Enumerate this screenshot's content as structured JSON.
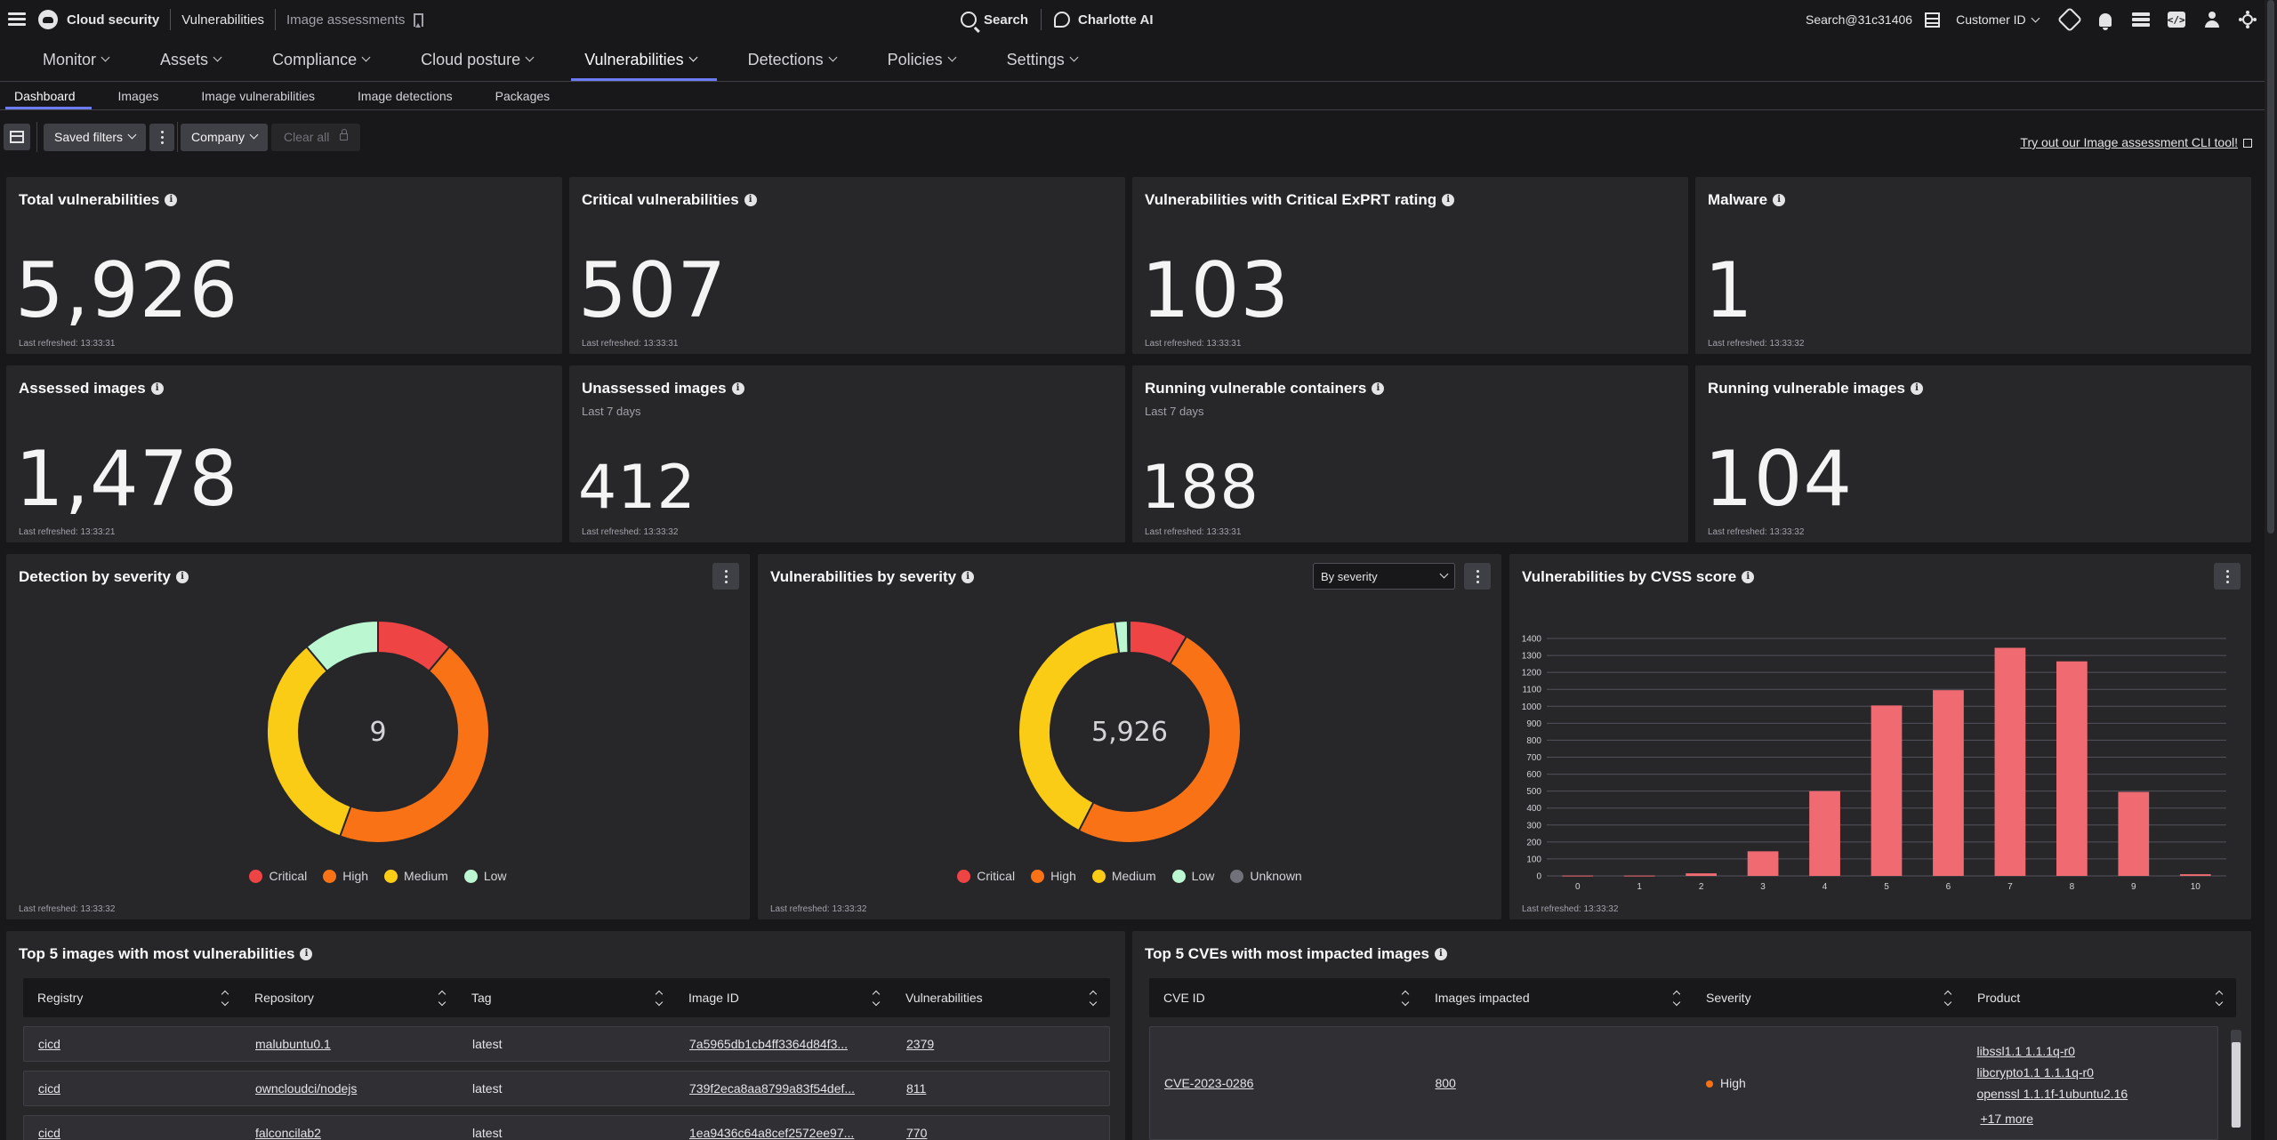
{
  "topbar": {
    "product": "Cloud security",
    "section": "Vulnerabilities",
    "page": "Image assessments",
    "search_label": "Search",
    "assistant_label": "Charlotte AI",
    "account": "Search@31c31406",
    "customer_label": "Customer ID"
  },
  "mainnav": [
    {
      "label": "Monitor"
    },
    {
      "label": "Assets"
    },
    {
      "label": "Compliance"
    },
    {
      "label": "Cloud posture"
    },
    {
      "label": "Vulnerabilities"
    },
    {
      "label": "Detections"
    },
    {
      "label": "Policies"
    },
    {
      "label": "Settings"
    }
  ],
  "subnav": [
    {
      "label": "Dashboard"
    },
    {
      "label": "Images"
    },
    {
      "label": "Image vulnerabilities"
    },
    {
      "label": "Image detections"
    },
    {
      "label": "Packages"
    }
  ],
  "filters": {
    "saved_filters": "Saved filters",
    "company": "Company",
    "clear_all": "Clear all",
    "cli_link": "Try out our Image assessment CLI tool!"
  },
  "stats": [
    {
      "title": "Total vulnerabilities",
      "sub": "",
      "value": "5,926",
      "refreshed": "Last refreshed: 13:33:31"
    },
    {
      "title": "Critical vulnerabilities",
      "sub": "",
      "value": "507",
      "refreshed": "Last refreshed: 13:33:31"
    },
    {
      "title": "Vulnerabilities with Critical ExPRT rating",
      "sub": "",
      "value": "103",
      "refreshed": "Last refreshed: 13:33:31"
    },
    {
      "title": "Malware",
      "sub": "",
      "value": "1",
      "refreshed": "Last refreshed: 13:33:32"
    },
    {
      "title": "Assessed images",
      "sub": "",
      "value": "1,478",
      "refreshed": "Last refreshed: 13:33:21"
    },
    {
      "title": "Unassessed images",
      "sub": "Last 7 days",
      "value": "412",
      "refreshed": "Last refreshed: 13:33:32"
    },
    {
      "title": "Running vulnerable containers",
      "sub": "Last 7 days",
      "value": "188",
      "refreshed": "Last refreshed: 13:33:31"
    },
    {
      "title": "Running vulnerable images",
      "sub": "",
      "value": "104",
      "refreshed": "Last refreshed: 13:33:32"
    }
  ],
  "detection_by_severity": {
    "title": "Detection by severity",
    "center": "9",
    "refreshed": "Last refreshed: 13:33:32",
    "legend": [
      "Critical",
      "High",
      "Medium",
      "Low"
    ]
  },
  "vulns_by_severity": {
    "title": "Vulnerabilities by severity",
    "select": "By severity",
    "center": "5,926",
    "refreshed": "Last refreshed: 13:33:32",
    "legend": [
      "Critical",
      "High",
      "Medium",
      "Low",
      "Unknown"
    ]
  },
  "cvss": {
    "title": "Vulnerabilities by CVSS score",
    "refreshed": "Last refreshed: 13:33:32"
  },
  "colors": {
    "critical": "#ef4444",
    "high": "#f97316",
    "medium": "#facc15",
    "low": "#bbf7d0",
    "unknown": "#71717a",
    "bar": "#f06a72"
  },
  "chart_data": [
    {
      "type": "pie",
      "title": "Detection by severity",
      "categories": [
        "Critical",
        "High",
        "Medium",
        "Low"
      ],
      "values": [
        1,
        4,
        3,
        1
      ],
      "total": 9
    },
    {
      "type": "pie",
      "title": "Vulnerabilities by severity",
      "categories": [
        "Critical",
        "High",
        "Medium",
        "Low",
        "Unknown"
      ],
      "values": [
        507,
        2903,
        2390,
        110,
        16
      ],
      "total": 5926
    },
    {
      "type": "bar",
      "title": "Vulnerabilities by CVSS score",
      "categories": [
        "0",
        "1",
        "2",
        "3",
        "4",
        "5",
        "6",
        "7",
        "8",
        "9",
        "10"
      ],
      "values": [
        2,
        2,
        15,
        145,
        500,
        1005,
        1095,
        1345,
        1265,
        495,
        10
      ],
      "yticks": [
        "0",
        "100",
        "200",
        "300",
        "400",
        "500",
        "600",
        "700",
        "800",
        "900",
        "1000",
        "1100",
        "1200",
        "1300",
        "1400"
      ],
      "ylim": [
        0,
        1400
      ],
      "grid": true
    }
  ],
  "top_images": {
    "title": "Top 5 images with most vulnerabilities",
    "columns": [
      "Registry",
      "Repository",
      "Tag",
      "Image ID",
      "Vulnerabilities"
    ],
    "rows": [
      [
        "cicd",
        "malubuntu0.1",
        "latest",
        "7a5965db1cb4ff3364d84f3...",
        "2379"
      ],
      [
        "cicd",
        "owncloudci/nodejs",
        "latest",
        "739f2eca8aa8799a83f54def...",
        "811"
      ],
      [
        "cicd",
        "falconcilab2",
        "latest",
        "1ea9436c64a8cef2572ee97...",
        "770"
      ]
    ]
  },
  "top_cves": {
    "title": "Top 5 CVEs with most impacted images",
    "columns": [
      "CVE ID",
      "Images impacted",
      "Severity",
      "Product"
    ],
    "rows": [
      {
        "cve": "CVE-2023-0286",
        "impacted": "800",
        "severity": "High",
        "products": [
          "libssl1.1 1.1.1q-r0",
          "libcrypto1.1 1.1.1q-r0",
          "openssl 1.1.1f-1ubuntu2.16"
        ],
        "more": "+17 more"
      }
    ]
  }
}
